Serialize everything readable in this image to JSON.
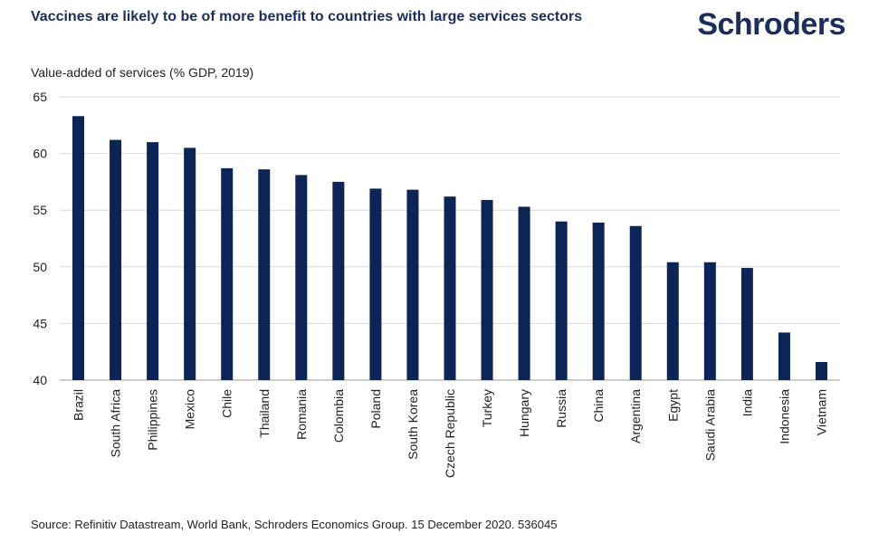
{
  "header": {
    "title": "Vaccines are likely to be of more benefit to countries with large services sectors",
    "logo": "Schroders"
  },
  "footer": {
    "source": "Source: Refinitiv Datastream, World Bank, Schroders Economics Group. 15 December 2020. 536045"
  },
  "colors": {
    "bar": "#0d2556",
    "title": "#1b2d5b",
    "grid": "#d9d9d9"
  },
  "chart_data": {
    "type": "bar",
    "title": "Vaccines are likely to be of more benefit to countries with large services sectors",
    "ylabel": "Value-added of services (% GDP, 2019)",
    "xlabel": "",
    "categories": [
      "Brazil",
      "South Africa",
      "Philippines",
      "Mexico",
      "Chile",
      "Thailand",
      "Romania",
      "Colombia",
      "Poland",
      "South Korea",
      "Czech Republic",
      "Turkey",
      "Hungary",
      "Russia",
      "China",
      "Argentina",
      "Egypt",
      "Saudi Arabia",
      "India",
      "Indonesia",
      "Vietnam"
    ],
    "values": [
      63.3,
      61.2,
      61.0,
      60.5,
      58.7,
      58.6,
      58.1,
      57.5,
      56.9,
      56.8,
      56.2,
      55.9,
      55.3,
      54.0,
      53.9,
      53.6,
      50.4,
      50.4,
      49.9,
      44.2,
      41.6
    ],
    "ylim": [
      40,
      65
    ],
    "yticks": [
      40,
      45,
      50,
      55,
      60,
      65
    ],
    "grid": true,
    "legend": "none"
  }
}
